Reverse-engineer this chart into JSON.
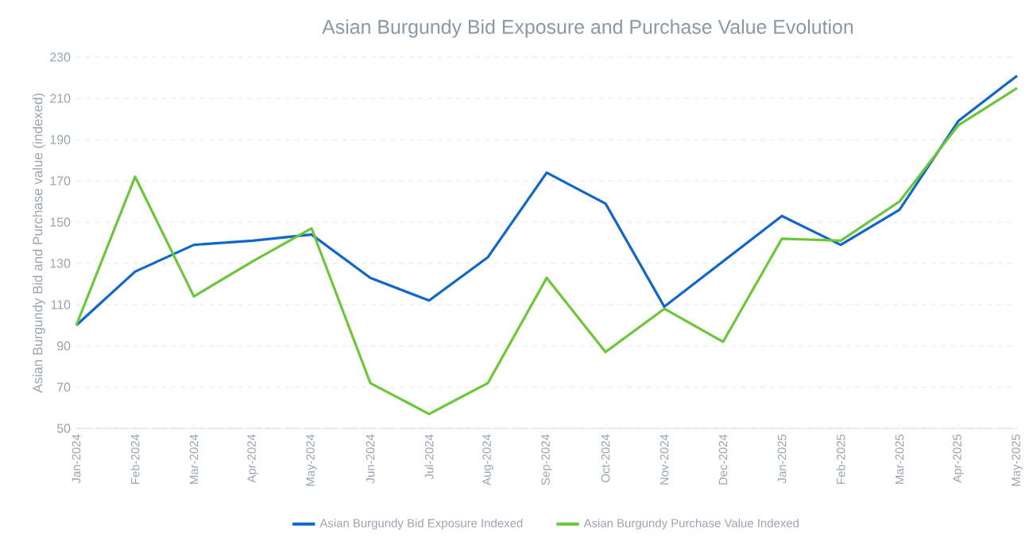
{
  "chart_data": {
    "type": "line",
    "title": "Asian Burgundy Bid Exposure and Purchase Value Evolution",
    "ylabel": "Asian Burgundy Bid and Purchase value (indexed)",
    "categories": [
      "Jan-2024",
      "Feb-2024",
      "Mar-2024",
      "Apr-2024",
      "May-2024",
      "Jun-2024",
      "Jul-2024",
      "Aug-2024",
      "Sep-2024",
      "Oct-2024",
      "Nov-2024",
      "Dec-2024",
      "Jan-2025",
      "Feb-2025",
      "Mar-2025",
      "Apr-2025",
      "May-2025"
    ],
    "series": [
      {
        "name": "Asian Burgundy Bid Exposure Indexed",
        "color": "#1166c8",
        "values": [
          100,
          126,
          139,
          141,
          144,
          123,
          112,
          133,
          174,
          159,
          109,
          131,
          153,
          139,
          156,
          199,
          221
        ]
      },
      {
        "name": "Asian Burgundy Purchase Value Indexed",
        "color": "#6cc63a",
        "values": [
          100,
          172,
          114,
          131,
          147,
          72,
          57,
          72,
          123,
          87,
          108,
          92,
          142,
          141,
          160,
          197,
          215
        ]
      }
    ],
    "ylim": [
      50,
      230
    ],
    "yticks": [
      50,
      70,
      90,
      110,
      130,
      150,
      170,
      190,
      210,
      230
    ],
    "grid": "y",
    "legend": "bottom",
    "marker": "none",
    "line_style": "solid"
  }
}
